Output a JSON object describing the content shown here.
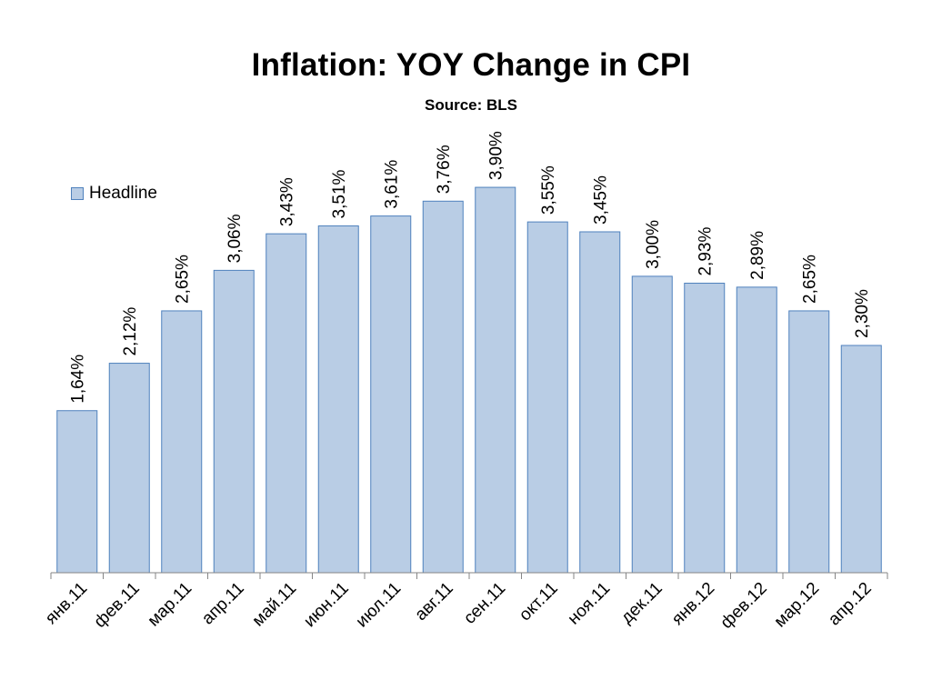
{
  "chart_data": {
    "type": "bar",
    "title": "Inflation: YOY Change in CPI",
    "subtitle": "Source: BLS",
    "categories": [
      "янв.11",
      "фев.11",
      "мар.11",
      "апр.11",
      "май.11",
      "июн.11",
      "июл.11",
      "авг.11",
      "сен.11",
      "окт.11",
      "ноя.11",
      "дек.11",
      "янв.12",
      "фев.12",
      "мар.12",
      "апр.12"
    ],
    "series": [
      {
        "name": "Headline",
        "values": [
          1.64,
          2.12,
          2.65,
          3.06,
          3.43,
          3.51,
          3.61,
          3.76,
          3.9,
          3.55,
          3.45,
          3.0,
          2.93,
          2.89,
          2.65,
          2.3
        ],
        "labels": [
          "1,64%",
          "2,12%",
          "2,65%",
          "3,06%",
          "3,43%",
          "3,51%",
          "3,61%",
          "3,76%",
          "3,90%",
          "3,55%",
          "3,45%",
          "3,00%",
          "2,93%",
          "2,89%",
          "2,65%",
          "2,30%"
        ]
      }
    ],
    "ylim": [
      0,
      4
    ],
    "grid": false,
    "legend_position": "top-left",
    "colors": {
      "bar_fill": "#b9cde5",
      "bar_stroke": "#4f81bd",
      "axis": "#868686"
    }
  }
}
